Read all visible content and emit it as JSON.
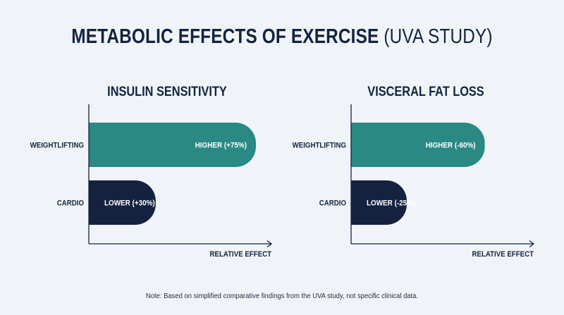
{
  "title_main": "METABOLIC EFFECTS OF EXERCISE",
  "title_sub": "(UVA STUDY)",
  "note": "Note: Based on simplified comparative findings from the UVA study, not specific clinical data.",
  "colors": {
    "weightlifting": "#2a8984",
    "cardio": "#14223f",
    "text": "#13233f",
    "background": "#f0f4f8"
  },
  "chart_data": [
    {
      "type": "bar",
      "orientation": "horizontal",
      "title": "INSULIN SENSITIVITY",
      "xlabel": "RELATIVE EFFECT",
      "categories": [
        "WEIGHTLIFTING",
        "CARDIO"
      ],
      "values": [
        75,
        30
      ],
      "data_labels": [
        "HIGHER (+75%)",
        "LOWER (+30%)"
      ],
      "xlim": [
        0,
        100
      ],
      "grid": false
    },
    {
      "type": "bar",
      "orientation": "horizontal",
      "title": "VISCERAL FAT LOSS",
      "xlabel": "RELATIVE EFFECT",
      "categories": [
        "WEIGHTLIFTING",
        "CARDIO"
      ],
      "values": [
        60,
        25
      ],
      "data_labels": [
        "HIGHER (-60%)",
        "LOWER (-25%)"
      ],
      "xlim": [
        0,
        100
      ],
      "grid": false
    }
  ]
}
